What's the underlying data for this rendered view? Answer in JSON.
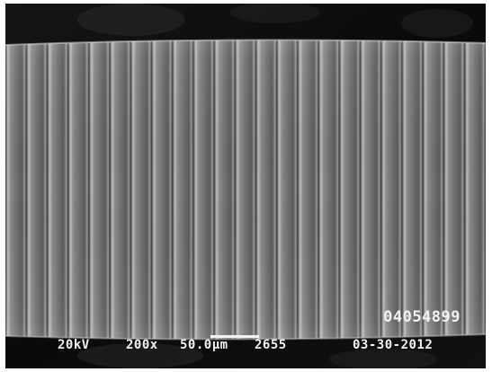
{
  "micrograph": {
    "specimen_id": "04054899",
    "voltage": "20kV",
    "magnification": "200x",
    "scale_bar_label": "50.0µm",
    "frame_number": "2655",
    "date": "03-30-2012"
  }
}
